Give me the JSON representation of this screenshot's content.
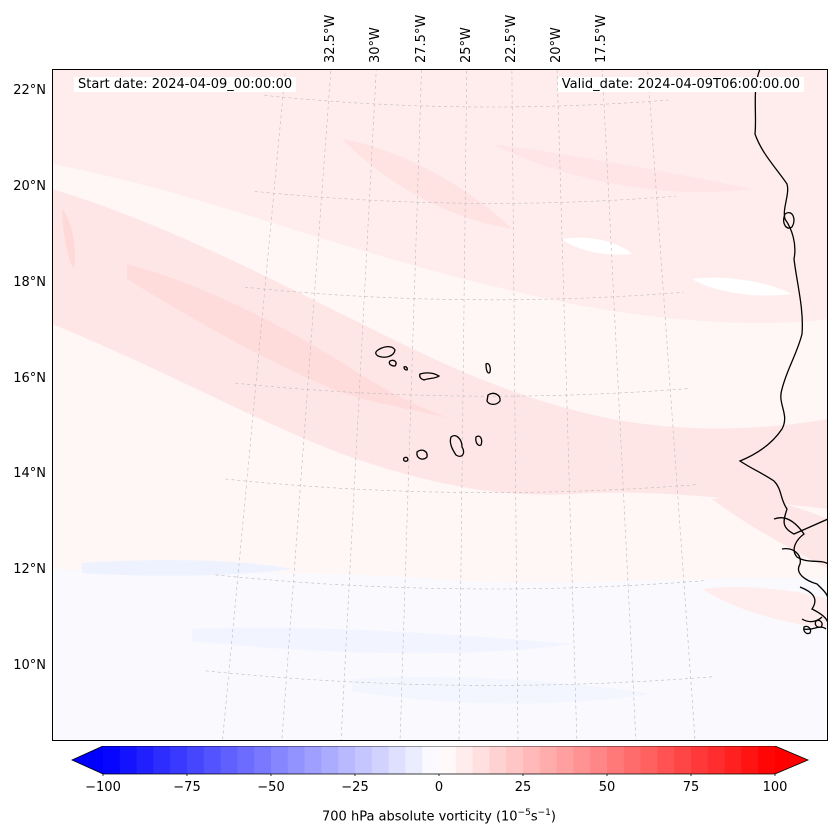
{
  "map": {
    "projection": "lambert-conformal",
    "extent": {
      "lon_west": -33.0,
      "lon_east": -16.3,
      "lat_south": 9.0,
      "lat_north": 22.6
    },
    "lon_ticks": [
      {
        "value": -32.5,
        "label": "32.5°W"
      },
      {
        "value": -30.0,
        "label": "30°W"
      },
      {
        "value": -27.5,
        "label": "27.5°W"
      },
      {
        "value": -25.0,
        "label": "25°W"
      },
      {
        "value": -22.5,
        "label": "22.5°W"
      },
      {
        "value": -20.0,
        "label": "20°W"
      },
      {
        "value": -17.5,
        "label": "17.5°W"
      }
    ],
    "lat_ticks": [
      {
        "value": 22,
        "label": "22°N"
      },
      {
        "value": 20,
        "label": "20°N"
      },
      {
        "value": 18,
        "label": "18°N"
      },
      {
        "value": 16,
        "label": "16°N"
      },
      {
        "value": 14,
        "label": "14°N"
      },
      {
        "value": 12,
        "label": "12°N"
      },
      {
        "value": 10,
        "label": "10°N"
      }
    ],
    "gridlines": true,
    "features": [
      "Cape Verde islands",
      "West African coastline"
    ],
    "field": "700 hPa absolute vorticity",
    "field_pattern": "mostly weak positive (light pink) values; slightly stronger pink band oriented WNW–ESE through the islands; faint negative (light blue) patches in the south"
  },
  "header": {
    "start_date": "Start date: 2024-04-09_00:00:00",
    "valid_date": "Valid_date: 2024-04-09T06:00:00.00"
  },
  "colorbar": {
    "min": -100,
    "max": 100,
    "step": 5,
    "extend": "both",
    "cmap": "bwr",
    "low_color": "#0000ff",
    "mid_color": "#ffffff",
    "high_color": "#ff0000",
    "ticks": [
      {
        "value": -100,
        "label": "−100"
      },
      {
        "value": -75,
        "label": "−75"
      },
      {
        "value": -50,
        "label": "−50"
      },
      {
        "value": -25,
        "label": "−25"
      },
      {
        "value": 0,
        "label": "0"
      },
      {
        "value": 25,
        "label": "25"
      },
      {
        "value": 50,
        "label": "50"
      },
      {
        "value": 75,
        "label": "75"
      },
      {
        "value": 100,
        "label": "100"
      }
    ],
    "label_main": "700 hPa absolute vorticity (10",
    "label_exp1": "−5",
    "label_mid": "s",
    "label_exp2": "−1",
    "label_end": ")"
  }
}
